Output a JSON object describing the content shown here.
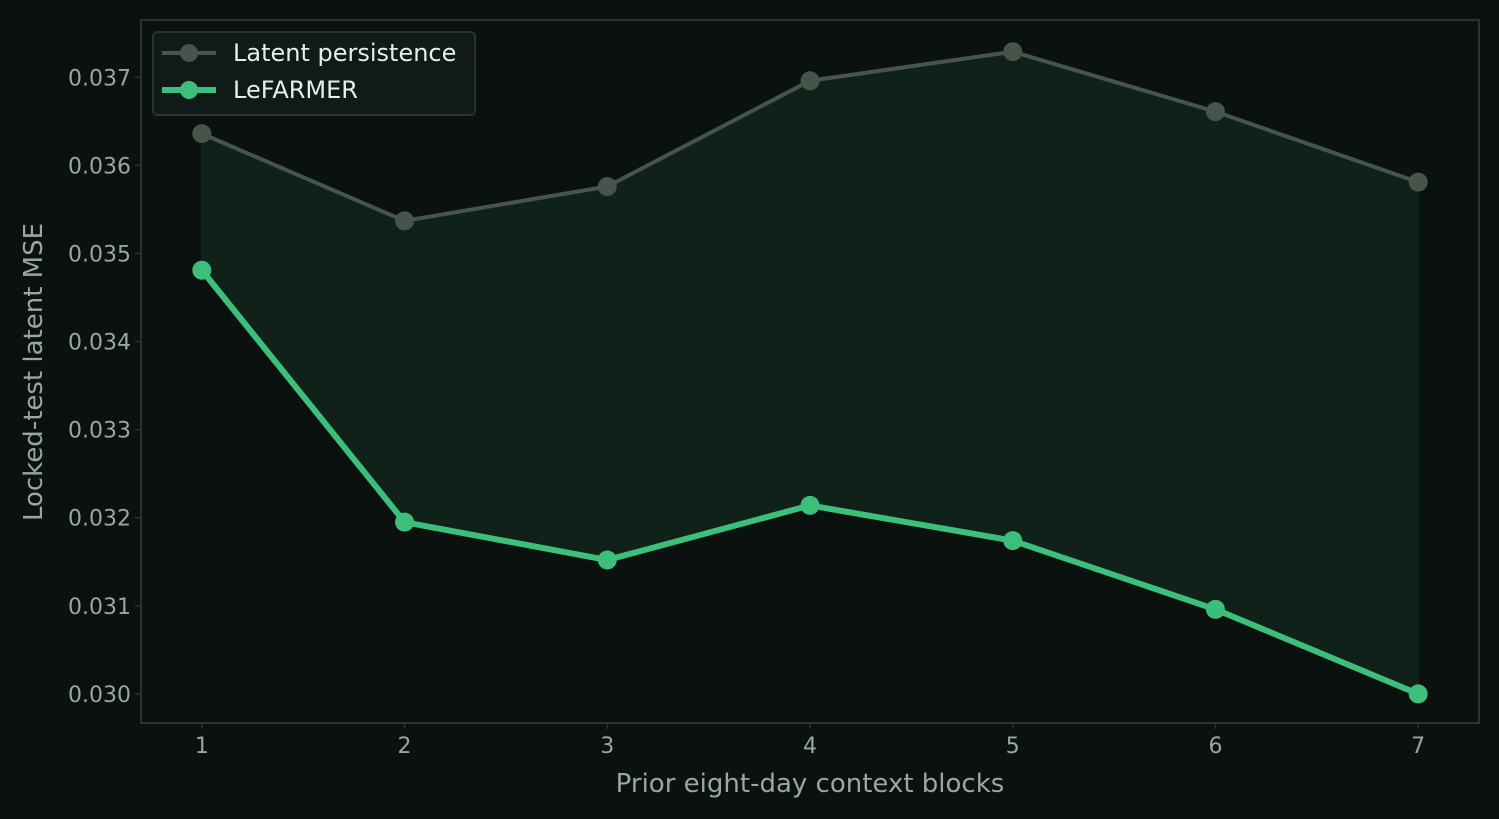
{
  "chart_data": {
    "type": "line",
    "title": "",
    "xlabel": "Prior eight-day context blocks",
    "ylabel": "Locked-test latent MSE",
    "x": [
      1,
      2,
      3,
      4,
      5,
      6,
      7
    ],
    "x_tick_labels": [
      "1",
      "2",
      "3",
      "4",
      "5",
      "6",
      "7"
    ],
    "xlim": [
      0.7,
      7.3
    ],
    "ylim": [
      0.02967,
      0.03765
    ],
    "y_ticks": [
      0.03,
      0.031,
      0.032,
      0.033,
      0.034,
      0.035,
      0.036,
      0.037
    ],
    "y_tick_labels": [
      "0.030",
      "0.031",
      "0.032",
      "0.033",
      "0.034",
      "0.035",
      "0.036",
      "0.037"
    ],
    "grid": false,
    "legend_position": "top-left",
    "fill_between_series": true,
    "series": [
      {
        "name": "Latent persistence",
        "color": "#46544c",
        "values": [
          0.03636,
          0.03537,
          0.03576,
          0.03696,
          0.03729,
          0.03661,
          0.03581
        ]
      },
      {
        "name": "LeFARMER",
        "color": "#3dbf7c",
        "values": [
          0.03481,
          0.03195,
          0.03152,
          0.03214,
          0.03174,
          0.03096,
          0.03
        ]
      }
    ],
    "colors": {
      "background": "#0b110e",
      "frame": "#2b332f",
      "fill": "#0f2118",
      "text": "#9aa69f",
      "legend_bg": "#101a16",
      "legend_border": "#2b332f",
      "legend_text": "#e8ede9"
    }
  }
}
